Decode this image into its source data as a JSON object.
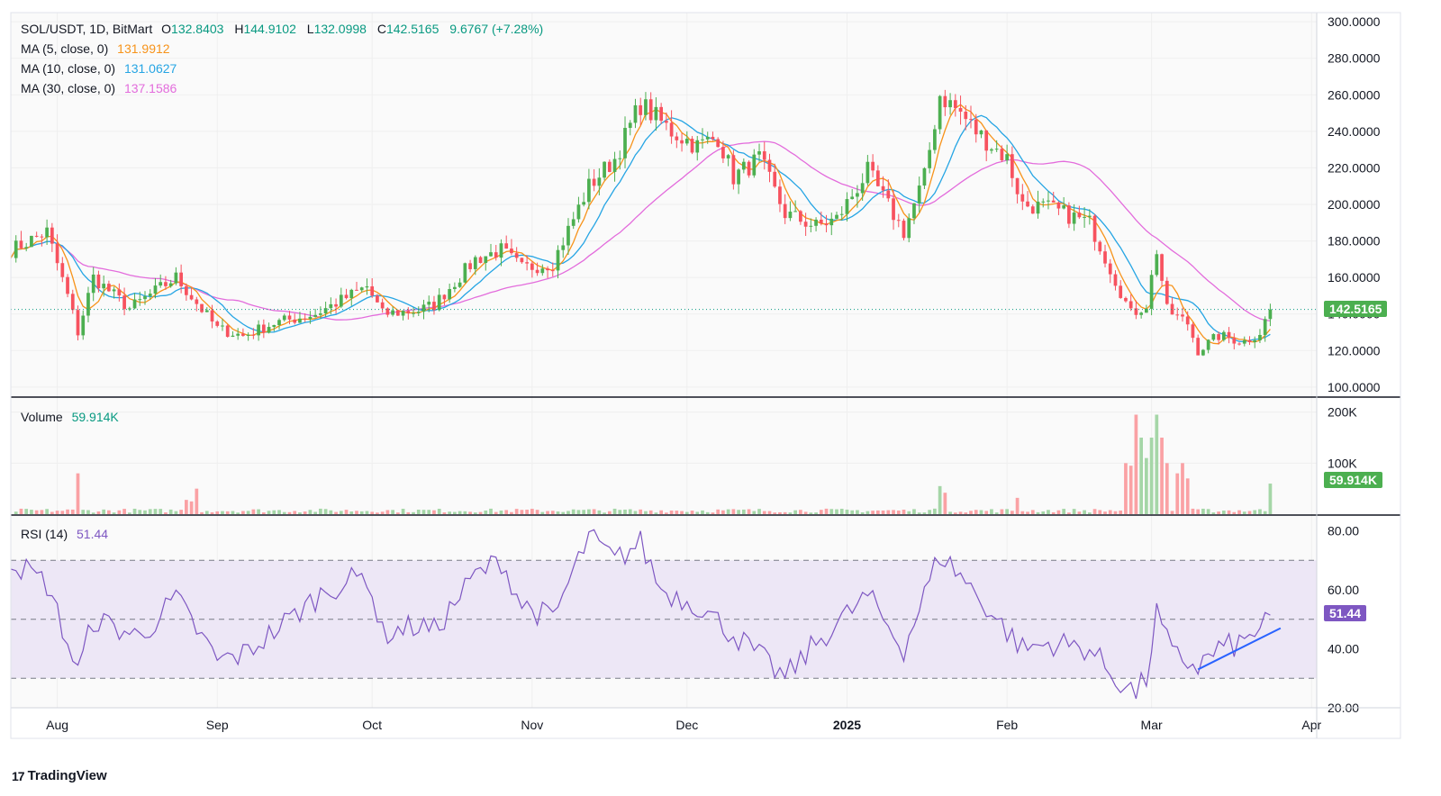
{
  "header": {
    "symbol": "SOL/USDT, 1D, BitMart",
    "open_label": "O",
    "open": "132.8403",
    "high_label": "H",
    "high": "144.9102",
    "low_label": "L",
    "low": "132.0998",
    "close_label": "C",
    "close": "142.5165",
    "change": "9.6767 (+7.28%)"
  },
  "ma_legends": [
    {
      "label": "MA (5, close, 0)",
      "value": "131.9912",
      "color": "#f7931a"
    },
    {
      "label": "MA (10, close, 0)",
      "value": "131.0627",
      "color": "#26a5e4"
    },
    {
      "label": "MA (30, close, 0)",
      "value": "137.1586",
      "color": "#e36cdc"
    }
  ],
  "volume_legend": {
    "label": "Volume",
    "value": "59.914K"
  },
  "rsi_legend": {
    "label": "RSI (14)",
    "value": "51.44"
  },
  "brand": {
    "name": "TradingView",
    "logo": "17"
  },
  "colors": {
    "up": "#4caf50",
    "down": "#f7525f",
    "up_vol": "#a5d6a7",
    "down_vol": "#faa1a4",
    "rsi": "#7e57c2",
    "rsi_band": "#ede7f6",
    "trend": "#2962ff",
    "last_price": "#089981"
  },
  "chart_data": [
    {
      "type": "candlestick",
      "title": "SOL/USDT, 1D, BitMart",
      "ylim": [
        95,
        305
      ],
      "y_ticks": [
        "100.0000",
        "120.0000",
        "140.0000",
        "160.0000",
        "180.0000",
        "200.0000",
        "220.0000",
        "240.0000",
        "260.0000",
        "280.0000",
        "300.0000"
      ],
      "last_price_label": "142.5165",
      "x_ticks": [
        "Aug",
        "Sep",
        "Oct",
        "Nov",
        "Dec",
        "2025",
        "Feb",
        "Mar",
        "Apr"
      ],
      "x_range": [
        "2024-07-23",
        "2025-04-02"
      ],
      "close_anchors": [
        [
          "2024-07-23",
          175
        ],
        [
          "2024-07-30",
          185
        ],
        [
          "2024-08-03",
          150
        ],
        [
          "2024-08-05",
          130
        ],
        [
          "2024-08-08",
          160
        ],
        [
          "2024-08-15",
          143
        ],
        [
          "2024-08-24",
          160
        ],
        [
          "2024-09-01",
          132
        ],
        [
          "2024-09-06",
          128
        ],
        [
          "2024-09-12",
          135
        ],
        [
          "2024-09-20",
          140
        ],
        [
          "2024-09-30",
          155
        ],
        [
          "2024-10-03",
          140
        ],
        [
          "2024-10-10",
          142
        ],
        [
          "2024-10-13",
          145
        ],
        [
          "2024-10-21",
          170
        ],
        [
          "2024-10-26",
          175
        ],
        [
          "2024-10-30",
          165
        ],
        [
          "2024-11-05",
          168
        ],
        [
          "2024-11-12",
          210
        ],
        [
          "2024-11-17",
          225
        ],
        [
          "2024-11-22",
          255
        ],
        [
          "2024-11-28",
          240
        ],
        [
          "2024-12-03",
          232
        ],
        [
          "2024-12-07",
          237
        ],
        [
          "2024-12-10",
          215
        ],
        [
          "2024-12-15",
          225
        ],
        [
          "2024-12-20",
          195
        ],
        [
          "2024-12-26",
          188
        ],
        [
          "2024-12-30",
          192
        ],
        [
          "2025-01-05",
          218
        ],
        [
          "2025-01-12",
          185
        ],
        [
          "2025-01-16",
          215
        ],
        [
          "2025-01-19",
          260
        ],
        [
          "2025-01-23",
          250
        ],
        [
          "2025-01-26",
          240
        ],
        [
          "2025-02-01",
          225
        ],
        [
          "2025-02-04",
          200
        ],
        [
          "2025-02-09",
          198
        ],
        [
          "2025-02-17",
          190
        ],
        [
          "2025-02-21",
          165
        ],
        [
          "2025-02-25",
          140
        ],
        [
          "2025-02-28",
          145
        ],
        [
          "2025-03-02",
          175
        ],
        [
          "2025-03-04",
          142
        ],
        [
          "2025-03-08",
          135
        ],
        [
          "2025-03-10",
          120
        ],
        [
          "2025-03-14",
          128
        ],
        [
          "2025-03-19",
          125
        ],
        [
          "2025-03-22",
          130
        ],
        [
          "2025-03-24",
          142.5
        ]
      ],
      "series": [
        {
          "name": "MA (5, close, 0)"
        },
        {
          "name": "MA (10, close, 0)"
        },
        {
          "name": "MA (30, close, 0)"
        }
      ]
    },
    {
      "type": "bar",
      "title": "Volume",
      "ylim": [
        0,
        210
      ],
      "y_ticks": [
        "100K",
        "200K"
      ],
      "last_value_label": "59.914K",
      "peaks": [
        [
          "2024-08-05",
          80
        ],
        [
          "2024-08-28",
          50
        ],
        [
          "2024-08-27",
          25
        ],
        [
          "2024-08-26",
          28
        ],
        [
          "2025-01-19",
          55
        ],
        [
          "2025-01-20",
          42
        ],
        [
          "2025-02-03",
          32
        ],
        [
          "2025-02-24",
          100
        ],
        [
          "2025-02-25",
          95
        ],
        [
          "2025-02-26",
          195
        ],
        [
          "2025-02-27",
          150
        ],
        [
          "2025-02-28",
          110
        ],
        [
          "2025-03-01",
          150
        ],
        [
          "2025-03-02",
          195
        ],
        [
          "2025-03-03",
          150
        ],
        [
          "2025-03-04",
          100
        ],
        [
          "2025-03-06",
          80
        ],
        [
          "2025-03-07",
          100
        ],
        [
          "2025-03-08",
          70
        ]
      ]
    },
    {
      "type": "line",
      "title": "RSI (14)",
      "ylim": [
        20,
        82
      ],
      "y_ticks": [
        "20.00",
        "40.00",
        "60.00",
        "80.00"
      ],
      "bands": [
        30,
        50,
        70
      ],
      "last_value_label": "51.44",
      "anchors": [
        [
          "2024-07-23",
          70
        ],
        [
          "2024-07-30",
          62
        ],
        [
          "2024-08-05",
          32
        ],
        [
          "2024-08-08",
          50
        ],
        [
          "2024-08-17",
          44
        ],
        [
          "2024-08-24",
          57
        ],
        [
          "2024-09-01",
          36
        ],
        [
          "2024-09-06",
          38
        ],
        [
          "2024-09-15",
          50
        ],
        [
          "2024-09-22",
          60
        ],
        [
          "2024-09-30",
          65
        ],
        [
          "2024-10-03",
          45
        ],
        [
          "2024-10-10",
          48
        ],
        [
          "2024-10-13",
          46
        ],
        [
          "2024-10-21",
          65
        ],
        [
          "2024-10-26",
          70
        ],
        [
          "2024-10-30",
          55
        ],
        [
          "2024-11-05",
          50
        ],
        [
          "2024-11-12",
          78
        ],
        [
          "2024-11-17",
          70
        ],
        [
          "2024-11-22",
          76
        ],
        [
          "2024-11-26",
          60
        ],
        [
          "2024-12-03",
          55
        ],
        [
          "2024-12-10",
          45
        ],
        [
          "2024-12-20",
          30
        ],
        [
          "2024-12-26",
          42
        ],
        [
          "2025-01-05",
          58
        ],
        [
          "2025-01-12",
          40
        ],
        [
          "2025-01-19",
          72
        ],
        [
          "2025-01-23",
          65
        ],
        [
          "2025-01-30",
          50
        ],
        [
          "2025-02-04",
          40
        ],
        [
          "2025-02-10",
          42
        ],
        [
          "2025-02-17",
          40
        ],
        [
          "2025-02-22",
          30
        ],
        [
          "2025-02-26",
          25
        ],
        [
          "2025-02-28",
          30
        ],
        [
          "2025-03-02",
          52
        ],
        [
          "2025-03-05",
          38
        ],
        [
          "2025-03-10",
          34
        ],
        [
          "2025-03-14",
          40
        ],
        [
          "2025-03-19",
          42
        ],
        [
          "2025-03-24",
          51.44
        ]
      ],
      "trendline": [
        [
          "2025-03-10",
          33
        ],
        [
          "2025-03-26",
          47
        ]
      ]
    }
  ]
}
